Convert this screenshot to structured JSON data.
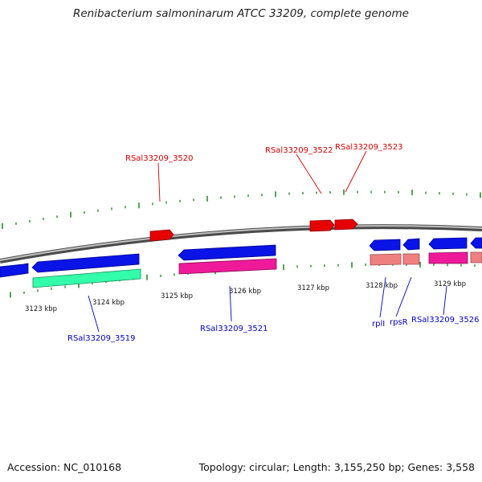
{
  "title": "Renibacterium salmoninarum ATCC 33209, complete genome",
  "footer": {
    "accession": "Accession: NC_010168",
    "topology": "Topology: circular; Length: 3,155,250 bp; Genes: 3,558"
  },
  "colors": {
    "forward_gene": "#e60000",
    "reverse_gene": "#0a14e6",
    "cds_green": "#33ffaa",
    "cds_magenta": "#ee1a99",
    "cds_pink": "#ee8080",
    "tick_green": "#2a8a2a",
    "backbone": "#8a8a8a",
    "label_red": "#cc0000",
    "label_blue": "#0000bb"
  },
  "scale_ticks": [
    "3123 kbp",
    "3124 kbp",
    "3125 kbp",
    "3126 kbp",
    "3127 kbp",
    "3128 kbp",
    "3129 kbp"
  ],
  "gene_labels": {
    "forward": [
      "RSal33209_3520",
      "RSal33209_3522",
      "RSal33209_3523"
    ],
    "reverse": [
      "RSal33209_3519",
      "RSal33209_3521",
      "rplI",
      "rpsR",
      "RSal33209_3526"
    ]
  }
}
